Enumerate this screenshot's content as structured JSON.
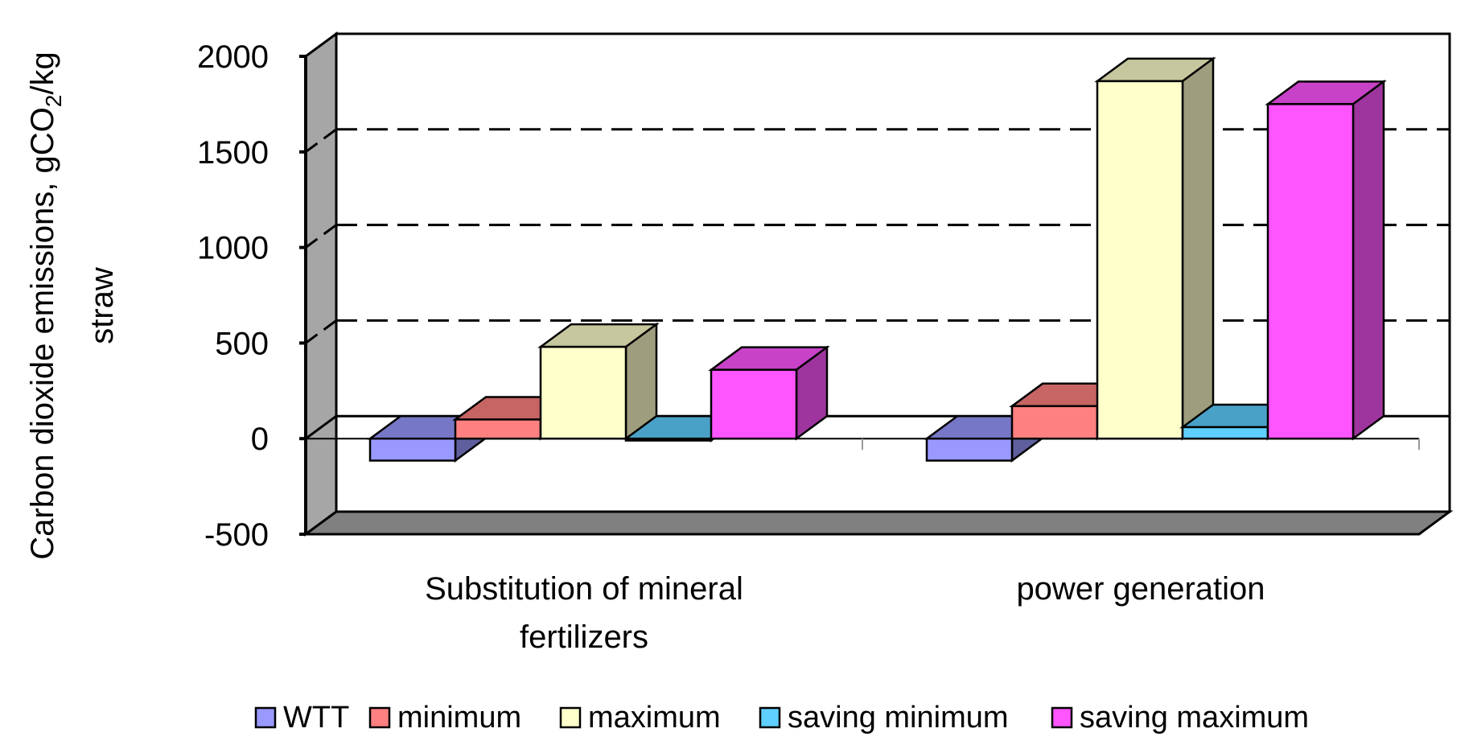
{
  "chart_data": {
    "type": "bar",
    "title": "",
    "ylabel": "Carbon dioxide emissions, gCO2/kg straw",
    "ylabel_line1_prefix": "Carbon dioxide emissions, gCO",
    "ylabel_line1_sub": "2",
    "ylabel_line1_suffix": "/kg",
    "ylabel_line2": "straw",
    "ylim": [
      -500,
      2000
    ],
    "yticks": [
      -500,
      0,
      500,
      1000,
      1500,
      2000
    ],
    "gridlines": [
      500,
      1000,
      1500
    ],
    "categories": [
      "Substitution of mineral fertilizers",
      "power generation"
    ],
    "category_lines": [
      [
        "Substitution of mineral",
        "fertilizers"
      ],
      [
        "power generation"
      ]
    ],
    "series": [
      {
        "name": "WTT",
        "values": [
          -115,
          -115
        ],
        "color": "#9999ff"
      },
      {
        "name": "minimum",
        "values": [
          100,
          170
        ],
        "color": "#ff8080"
      },
      {
        "name": "maximum",
        "values": [
          480,
          1870
        ],
        "color": "#ffffcc"
      },
      {
        "name": "saving minimum",
        "values": [
          -10,
          60
        ],
        "color": "#5fcfff"
      },
      {
        "name": "saving maximum",
        "values": [
          360,
          1750
        ],
        "color": "#ff55ff"
      }
    ],
    "legend_position": "bottom"
  }
}
